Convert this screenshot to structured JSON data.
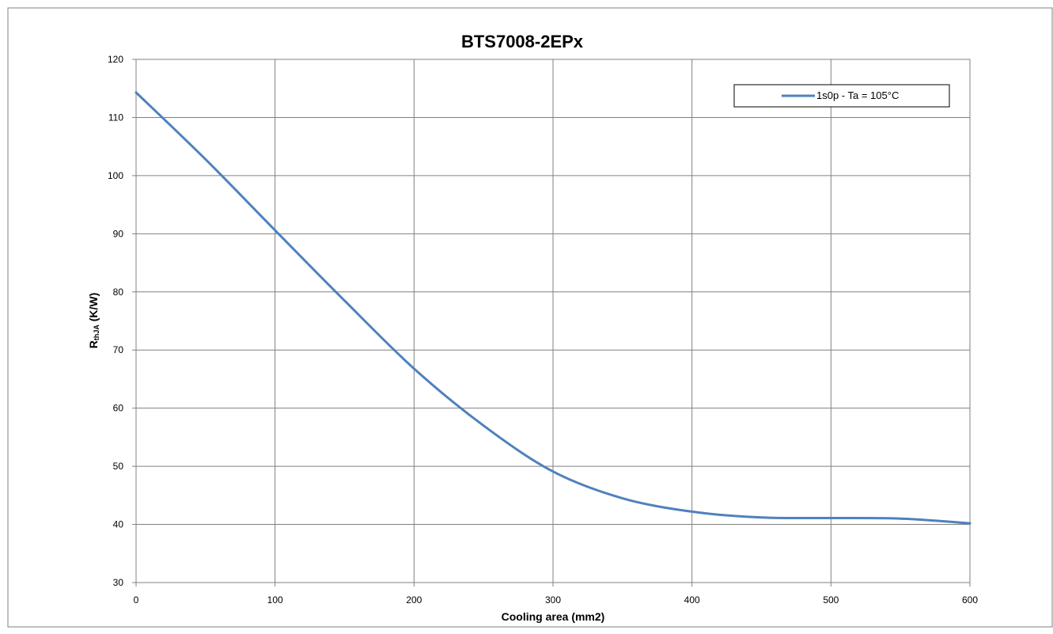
{
  "chart_data": {
    "type": "line",
    "title": "BTS7008-2EPx",
    "xlabel": "Cooling area (mm2)",
    "ylabel": {
      "main": "R",
      "sub": "thJA",
      "rest": " (K/W)"
    },
    "xlim": [
      0,
      600
    ],
    "ylim": [
      30,
      120
    ],
    "x_ticks": [
      0,
      100,
      200,
      300,
      400,
      500,
      600
    ],
    "y_ticks": [
      30,
      40,
      50,
      60,
      70,
      80,
      90,
      100,
      110,
      120
    ],
    "grid": true,
    "legend_position": "top-right",
    "series": [
      {
        "name": "1s0p - Ta = 105°C",
        "color": "#4f81bd",
        "x": [
          0,
          50,
          100,
          150,
          200,
          250,
          300,
          350,
          400,
          450,
          500,
          550,
          600
        ],
        "y": [
          114.3,
          102.8,
          90.6,
          78.5,
          66.8,
          57.0,
          49.1,
          44.5,
          42.2,
          41.2,
          41.1,
          41.0,
          40.2
        ]
      }
    ]
  }
}
